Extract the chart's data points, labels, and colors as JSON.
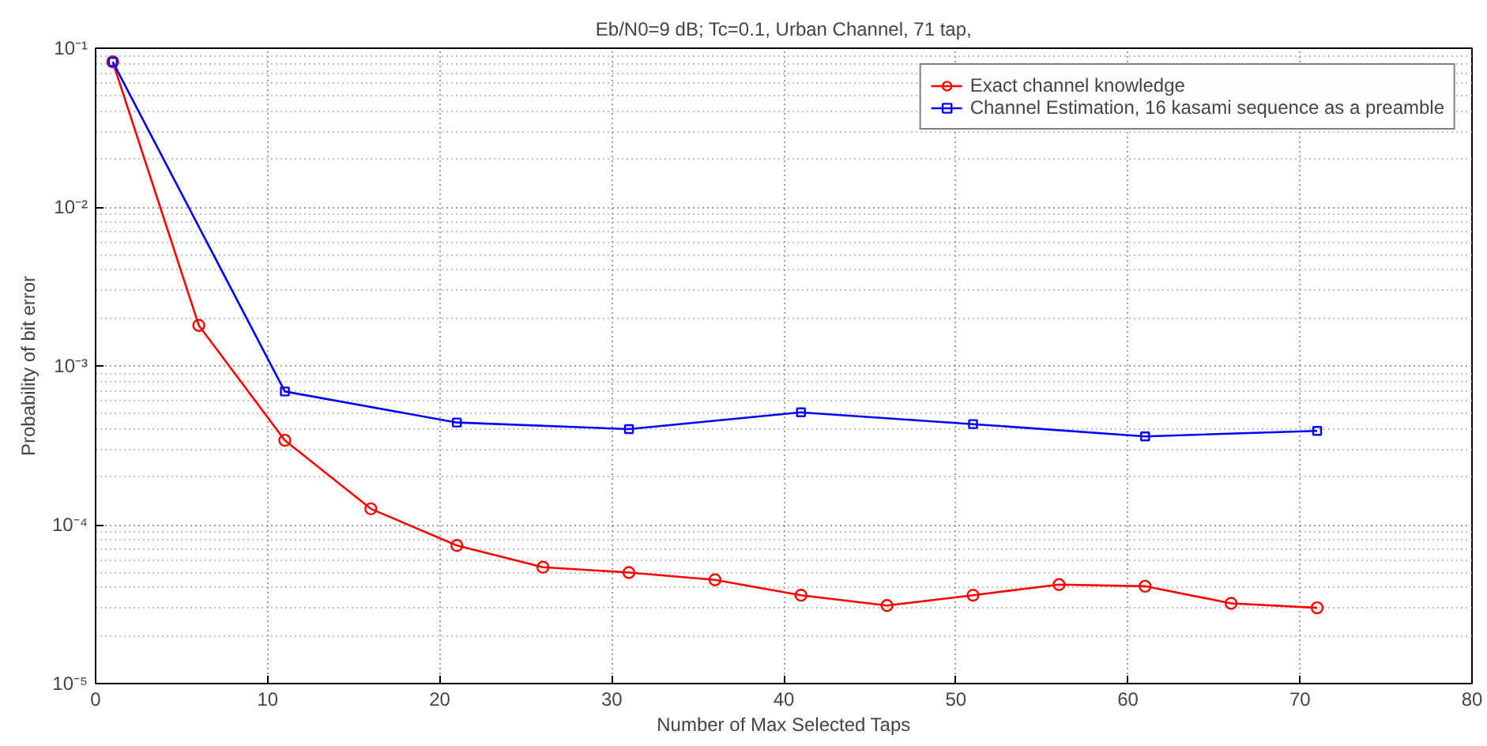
{
  "chart_data": {
    "type": "line",
    "title": "Eb/N0=9 dB; Tc=0.1, Urban Channel, 71 tap,",
    "xlabel": "Number of Max Selected Taps",
    "ylabel": "Probability of bit error",
    "log": "y",
    "grid": true,
    "legend": "top right",
    "line_style": "solid",
    "xlim": [
      0,
      80
    ],
    "xticks": [
      0,
      10,
      20,
      30,
      40,
      50,
      60,
      70,
      80
    ],
    "ylim": [
      1e-05,
      0.1
    ],
    "yticks": [
      {
        "value": 1e-05,
        "label": "10⁻⁵"
      },
      {
        "value": 0.0001,
        "label": "10⁻⁴"
      },
      {
        "value": 0.001,
        "label": "10⁻³"
      },
      {
        "value": 0.01,
        "label": "10⁻²"
      },
      {
        "value": 0.1,
        "label": "10⁻¹"
      }
    ],
    "series": [
      {
        "name": "Exact channel knowledge",
        "color": "#ff0000",
        "marker": "circle",
        "x": [
          1,
          6,
          11,
          16,
          21,
          26,
          31,
          36,
          41,
          46,
          51,
          56,
          61,
          66,
          71
        ],
        "values": [
          0.082,
          0.0018,
          0.00034,
          0.000126,
          7.4e-05,
          5.4e-05,
          5e-05,
          4.5e-05,
          3.6e-05,
          3.1e-05,
          3.6e-05,
          4.2e-05,
          4.1e-05,
          3.2e-05,
          3e-05
        ]
      },
      {
        "name": "Channel Estimation, 16 kasami sequence as a preamble",
        "color": "#0000ff",
        "marker": "square",
        "x": [
          1,
          11,
          21,
          31,
          41,
          51,
          61,
          71
        ],
        "values": [
          0.082,
          0.00069,
          0.00044,
          0.0004,
          0.00051,
          0.00043,
          0.00036,
          0.00039
        ]
      }
    ]
  }
}
